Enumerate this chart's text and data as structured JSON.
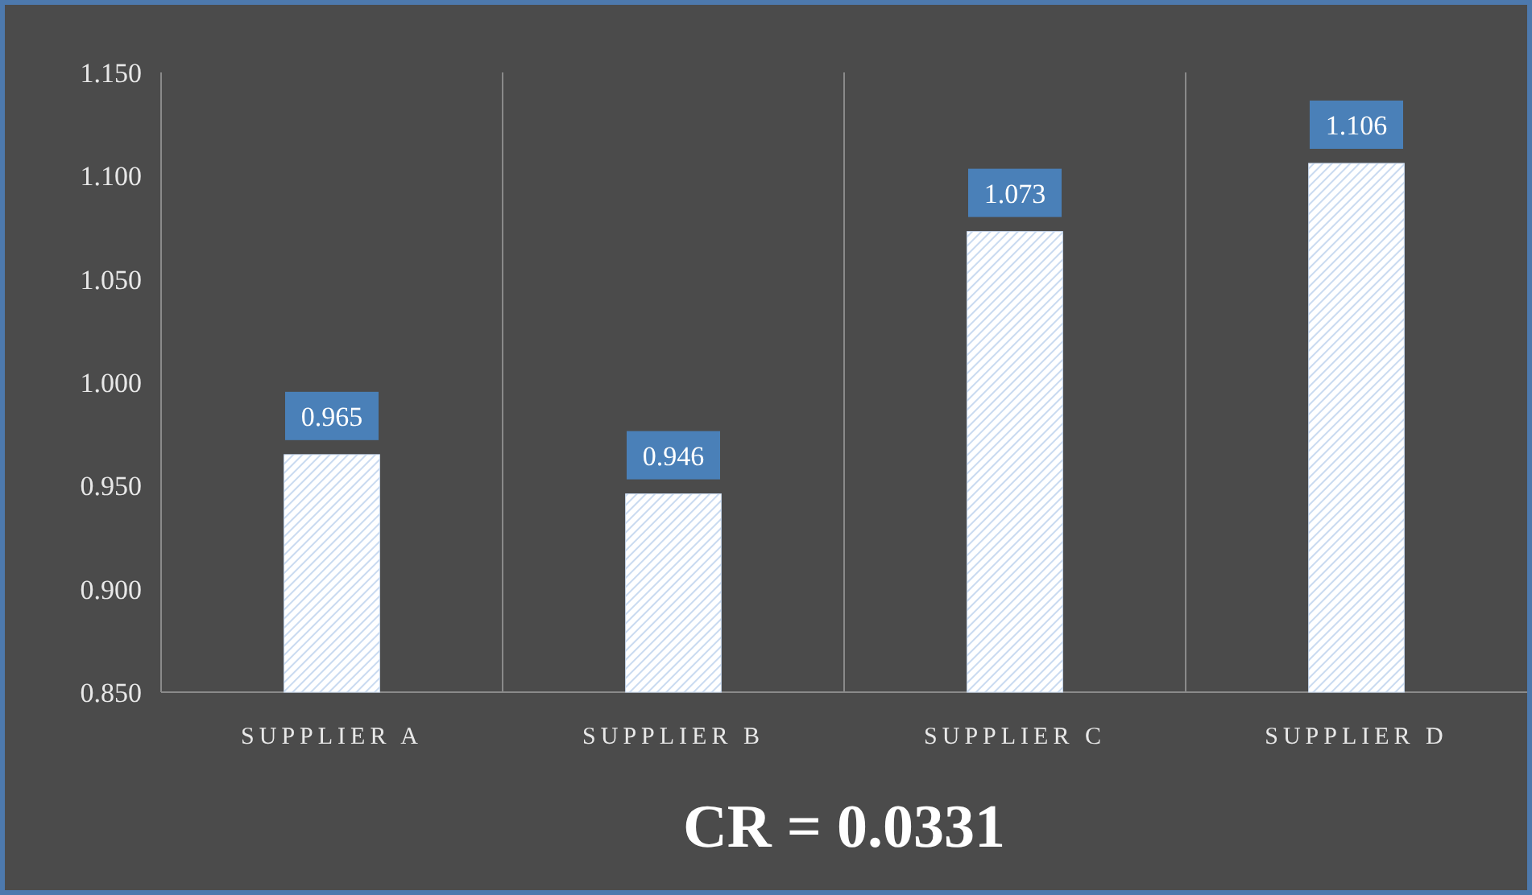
{
  "chart_data": {
    "type": "bar",
    "xlabel": "CR = 0.0331",
    "categories": [
      "SUPPLIER A",
      "SUPPLIER B",
      "SUPPLIER C",
      "SUPPLIER D"
    ],
    "values": [
      0.965,
      0.946,
      1.073,
      1.106
    ],
    "color": "#c9daf0",
    "ylim": [
      0.85,
      1.15
    ],
    "yticks": [
      {
        "value": 0.85,
        "label": "0.850"
      },
      {
        "value": 0.9,
        "label": "0.900"
      },
      {
        "value": 0.95,
        "label": "0.950"
      },
      {
        "value": 1.0,
        "label": "1.000"
      },
      {
        "value": 1.05,
        "label": "1.050"
      },
      {
        "value": 1.1,
        "label": "1.100"
      },
      {
        "value": 1.15,
        "label": "1.150"
      }
    ],
    "grid": "x",
    "data_labels": true
  }
}
